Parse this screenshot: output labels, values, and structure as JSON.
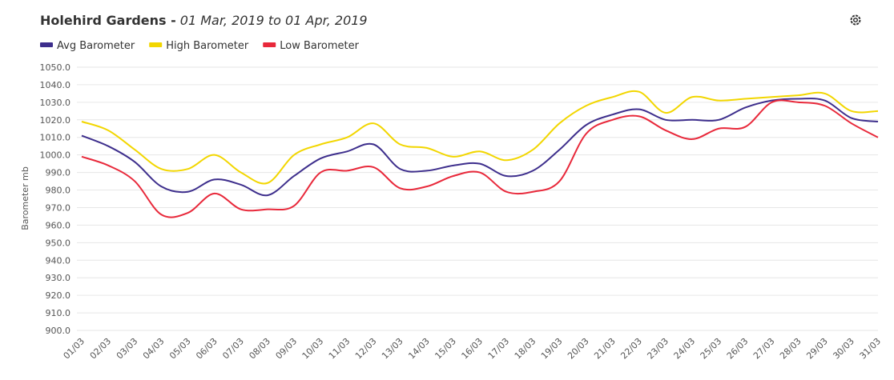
{
  "chart_data": {
    "type": "line",
    "title": "Holehird Gardens -",
    "subtitle": "01 Mar, 2019 to 01 Apr, 2019",
    "y_label": "Barometer mb",
    "categories": [
      "01/03",
      "02/03",
      "03/03",
      "04/03",
      "05/03",
      "06/03",
      "07/03",
      "08/03",
      "09/03",
      "10/03",
      "11/03",
      "12/03",
      "13/03",
      "14/03",
      "15/03",
      "16/03",
      "17/03",
      "18/03",
      "19/03",
      "20/03",
      "21/03",
      "22/03",
      "23/03",
      "24/03",
      "25/03",
      "26/03",
      "27/03",
      "28/03",
      "29/03",
      "30/03",
      "31/03"
    ],
    "series": [
      {
        "name": "Avg Barometer",
        "color": "#3d2e8c",
        "values": [
          1011,
          1005,
          996,
          982,
          979,
          986,
          983,
          977,
          988,
          998,
          1002,
          1006,
          992,
          991,
          994,
          995,
          988,
          991,
          1003,
          1017,
          1023,
          1026,
          1020,
          1020,
          1020,
          1027,
          1031,
          1032,
          1031,
          1021,
          1019
        ]
      },
      {
        "name": "High Barometer",
        "color": "#f2d600",
        "values": [
          1019,
          1014,
          1003,
          992,
          992,
          1000,
          990,
          984,
          1000,
          1006,
          1010,
          1018,
          1006,
          1004,
          999,
          1002,
          997,
          1003,
          1018,
          1028,
          1033,
          1036,
          1024,
          1033,
          1031,
          1032,
          1033,
          1034,
          1035,
          1025,
          1025
        ]
      },
      {
        "name": "Low Barometer",
        "color": "#e8283a",
        "values": [
          999,
          994,
          985,
          966,
          967,
          978,
          969,
          969,
          971,
          990,
          991,
          993,
          981,
          982,
          988,
          990,
          979,
          979,
          985,
          1012,
          1020,
          1022,
          1014,
          1009,
          1015,
          1016,
          1030,
          1030,
          1028,
          1018,
          1010
        ]
      }
    ],
    "ylim": [
      900,
      1050
    ],
    "yticks": [
      {
        "value": 900,
        "label": "900.0"
      },
      {
        "value": 910,
        "label": "910.0"
      },
      {
        "value": 920,
        "label": "920.0"
      },
      {
        "value": 930,
        "label": "930.0"
      },
      {
        "value": 940,
        "label": "940.0"
      },
      {
        "value": 950,
        "label": "950.0"
      },
      {
        "value": 960,
        "label": "960.0"
      },
      {
        "value": 970,
        "label": "970.0"
      },
      {
        "value": 980,
        "label": "980.0"
      },
      {
        "value": 990,
        "label": "990.0"
      },
      {
        "value": 1000,
        "label": "1000.0"
      },
      {
        "value": 1010,
        "label": "1010.0"
      },
      {
        "value": 1020,
        "label": "1020.0"
      },
      {
        "value": 1030,
        "label": "1030.0"
      },
      {
        "value": 1040,
        "label": "1040.0"
      },
      {
        "value": 1050,
        "label": "1050.0"
      }
    ],
    "grid": true
  }
}
